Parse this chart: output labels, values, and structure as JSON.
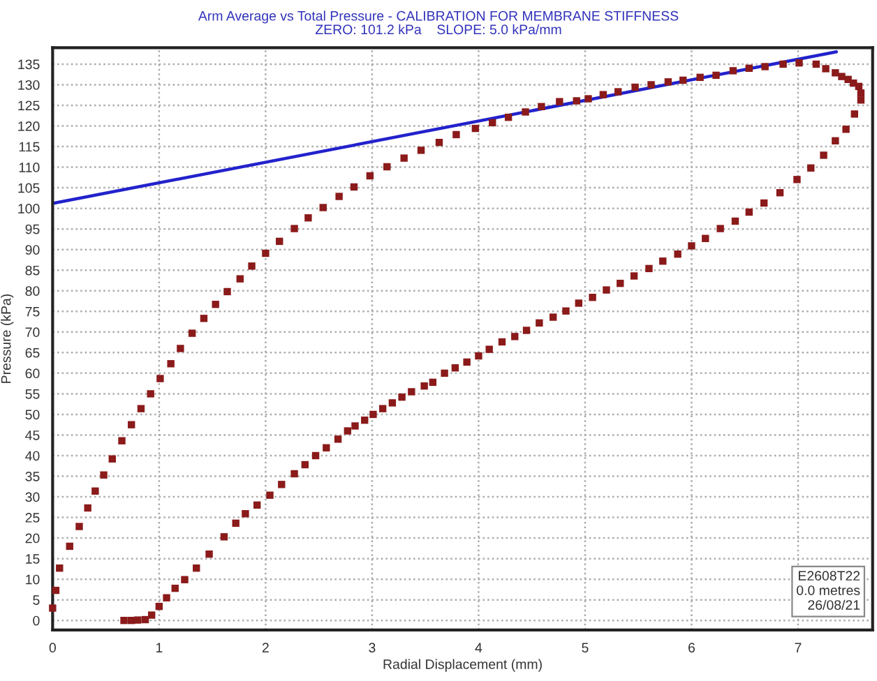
{
  "chart_data": {
    "type": "scatter",
    "title": "Arm Average vs Total Pressure - CALIBRATION FOR MEMBRANE STIFFNESS",
    "subtitle": "ZERO: 101.2 kPa    SLOPE: 5.0 kPa/mm",
    "xlabel": "Radial Displacement (mm)",
    "ylabel": "Pressure (kPa)",
    "annotations": [
      "E2608T22\n0.0 metres\n26/08/21"
    ],
    "xlim": [
      0,
      7.7
    ],
    "xticks": [
      0,
      1,
      2,
      3,
      4,
      5,
      6,
      7
    ],
    "ylim": [
      -2.3,
      139
    ],
    "yticks": [
      0,
      5,
      10,
      15,
      20,
      25,
      30,
      35,
      40,
      45,
      50,
      55,
      60,
      65,
      70,
      75,
      80,
      85,
      90,
      95,
      100,
      105,
      110,
      115,
      120,
      125,
      130,
      135
    ],
    "grid": true,
    "legend": false,
    "series": [
      {
        "marker": "square",
        "color": "#8b1a1a",
        "x": [
          0,
          0.03,
          0.065,
          0.16,
          0.25,
          0.33,
          0.4,
          0.48,
          0.56,
          0.65,
          0.74,
          0.83,
          0.92,
          1.01,
          1.11,
          1.2,
          1.31,
          1.42,
          1.53,
          1.64,
          1.76,
          1.87,
          2.0,
          2.13,
          2.27,
          2.4,
          2.54,
          2.69,
          2.83,
          2.98,
          3.14,
          3.3,
          3.46,
          3.63,
          3.79,
          3.97,
          4.13,
          4.28,
          4.44,
          4.59,
          4.76,
          4.92,
          5.03,
          5.17,
          5.31,
          5.47,
          5.62,
          5.78,
          5.92,
          6.08,
          6.23,
          6.39,
          6.54,
          6.69,
          6.86,
          7.01,
          7.17,
          7.26,
          7.35,
          7.41,
          7.47,
          7.52,
          7.57,
          7.59,
          7.59,
          7.53,
          7.45,
          7.35,
          7.24,
          7.12,
          6.99,
          6.83,
          6.68,
          6.54,
          6.41,
          6.27,
          6.13,
          6.0,
          5.87,
          5.73,
          5.6,
          5.46,
          5.33,
          5.2,
          5.07,
          4.94,
          4.82,
          4.7,
          4.57,
          4.45,
          4.34,
          4.22,
          4.1,
          4.0,
          3.89,
          3.78,
          3.68,
          3.57,
          3.49,
          3.37,
          3.28,
          3.19,
          3.1,
          3.01,
          2.93,
          2.84,
          2.77,
          2.68,
          2.57,
          2.47,
          2.37,
          2.27,
          2.15,
          2.04,
          1.92,
          1.81,
          1.72,
          1.61,
          1.47,
          1.35,
          1.24,
          1.15,
          1.07,
          1.0,
          0.93,
          0.87,
          0.8,
          0.74,
          0.67
        ],
        "values": [
          3,
          7.3,
          12.7,
          18,
          22.8,
          27.3,
          31.4,
          35.3,
          39.2,
          43.6,
          47.5,
          51.4,
          55,
          58.7,
          62.3,
          66,
          69.7,
          73.3,
          76.7,
          79.8,
          82.9,
          86,
          89.1,
          92,
          95.1,
          97.7,
          100.2,
          102.9,
          105.2,
          107.9,
          110.1,
          112.2,
          114.1,
          116,
          117.9,
          119.4,
          120.8,
          122.1,
          123.4,
          124.7,
          125.9,
          126.1,
          126.6,
          127.6,
          128.3,
          129.4,
          130,
          130.7,
          131.1,
          131.8,
          132.3,
          133.4,
          134,
          134.4,
          135,
          135.3,
          135,
          133.9,
          132.9,
          132,
          131.3,
          130.4,
          129.6,
          128,
          126.3,
          122.9,
          119.2,
          116.4,
          112.9,
          109.8,
          107,
          103.8,
          101.3,
          99.1,
          96.9,
          95.1,
          92.7,
          90.9,
          88.9,
          87.2,
          85.4,
          83.6,
          81.8,
          80.2,
          78.4,
          77,
          75.1,
          73.6,
          72.2,
          70.4,
          68.9,
          67.6,
          65.8,
          64.2,
          62.7,
          61.3,
          60,
          57.8,
          56.9,
          55.5,
          54.2,
          52.8,
          51.4,
          50,
          48.6,
          47.2,
          46,
          44,
          41.9,
          40,
          37.8,
          35.6,
          33,
          30.4,
          28,
          25.9,
          23.6,
          20.3,
          16.1,
          12.7,
          9.9,
          7.8,
          5.5,
          3.4,
          1.3,
          0.2,
          0.1,
          0,
          0
        ]
      },
      {
        "type": "line",
        "marker": "none",
        "line_style": "solid",
        "color": "#2222cc",
        "x": [
          0,
          7.36
        ],
        "values": [
          101.2,
          138
        ]
      }
    ]
  }
}
